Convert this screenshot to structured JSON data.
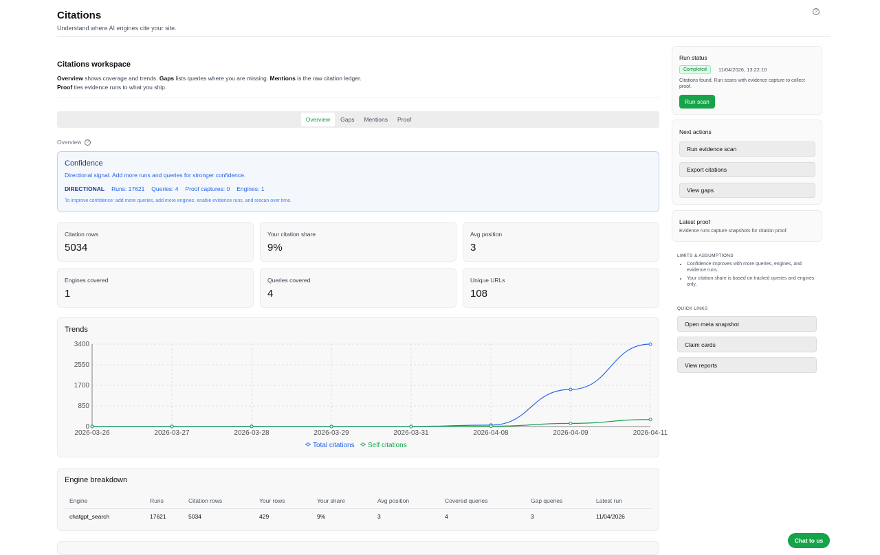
{
  "header": {
    "title": "Citations",
    "subtitle": "Understand where AI engines cite your site.",
    "help_icon": "question-circle-icon"
  },
  "workspace": {
    "title": "Citations workspace",
    "desc": {
      "t1": "Overview",
      "t2": " shows coverage and trends. ",
      "t3": "Gaps",
      "t4": " lists queries where you are missing. ",
      "t5": "Mentions",
      "t6": " is the raw citation ledger. ",
      "t7": "Proof",
      "t8": " ties evidence runs to what you ship."
    }
  },
  "tabs": [
    "Overview",
    "Gaps",
    "Mentions",
    "Proof"
  ],
  "active_tab": "Overview",
  "overview_label": "Overview",
  "confidence": {
    "title": "Confidence",
    "subtitle": "Directional signal. Add more runs and queries for stronger confidence.",
    "level": "DIRECTIONAL",
    "runs": "Runs: 17621",
    "queries": "Queries: 4",
    "proof_captures": "Proof captures: 0",
    "engines": "Engines: 1",
    "hint": "To improve confidence: add more queries, add more engines, enable evidence runs, and rescan over time."
  },
  "metrics": [
    {
      "label": "Citation rows",
      "value": "5034"
    },
    {
      "label": "Your citation share",
      "value": "9%"
    },
    {
      "label": "Avg position",
      "value": "3"
    },
    {
      "label": "Engines covered",
      "value": "1"
    },
    {
      "label": "Queries covered",
      "value": "4"
    },
    {
      "label": "Unique URLs",
      "value": "108"
    }
  ],
  "trends": {
    "title": "Trends",
    "chart_data": {
      "type": "line",
      "categories": [
        "2026-03-26",
        "2026-03-27",
        "2026-03-28",
        "2026-03-29",
        "2026-03-31",
        "2026-04-08",
        "2026-04-09",
        "2026-04-11"
      ],
      "series": [
        {
          "name": "Total citations",
          "color": "#2563eb",
          "values": [
            5,
            5,
            10,
            5,
            5,
            60,
            1530,
            3400
          ]
        },
        {
          "name": "Self citations",
          "color": "#16a34a",
          "values": [
            1,
            1,
            2,
            1,
            1,
            10,
            130,
            290
          ]
        }
      ],
      "yticks": [
        "0",
        "850",
        "1700",
        "2550",
        "3400"
      ],
      "ylim": [
        0,
        3400
      ],
      "grid": true,
      "legend": "bottom"
    }
  },
  "engine_breakdown": {
    "title": "Engine breakdown",
    "columns": [
      "Engine",
      "Runs",
      "Citation rows",
      "Your rows",
      "Your share",
      "Avg position",
      "Covered queries",
      "Gap queries",
      "Latest run"
    ],
    "rows": [
      [
        "chatgpt_search",
        "17621",
        "5034",
        "429",
        "9%",
        "3",
        "4",
        "3",
        "11/04/2026"
      ]
    ]
  },
  "run_status": {
    "title": "Run status",
    "badge": "Completed",
    "time": "11/04/2026, 13:22:10",
    "note": "Citations found. Run scans with evidence capture to collect proof.",
    "button": "Run scan"
  },
  "next_actions": {
    "title": "Next actions",
    "items": [
      "Run evidence scan",
      "Export citations",
      "View gaps"
    ]
  },
  "latest_proof": {
    "title": "Latest proof",
    "subtitle": "Evidence runs capture snapshots for citation proof."
  },
  "limits": {
    "title": "LIMITS & ASSUMPTIONS",
    "items": [
      "Confidence improves with more queries, engines, and evidence runs.",
      "Your citation share is based on tracked queries and engines only."
    ]
  },
  "quick_links": {
    "title": "QUICK LINKS",
    "items": [
      "Open meta snapshot",
      "Claim cards",
      "View reports"
    ]
  },
  "chat_button": "Chat to us"
}
